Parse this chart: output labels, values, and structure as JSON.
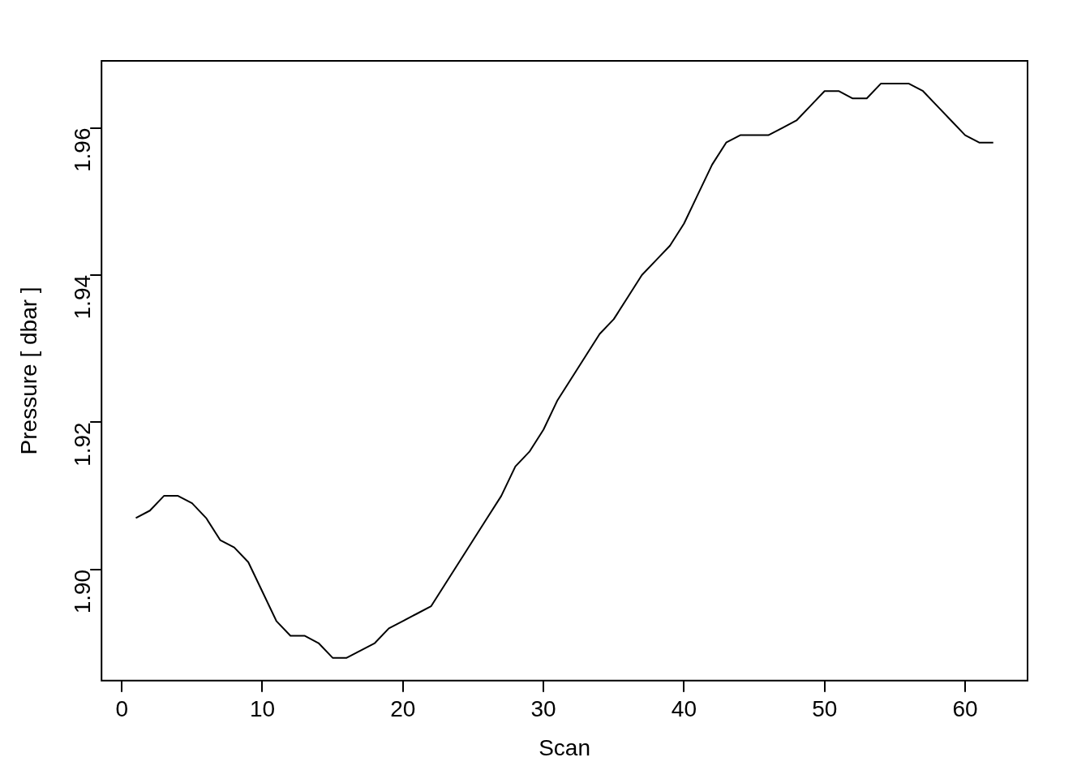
{
  "chart_data": {
    "type": "line",
    "xlabel": "Scan",
    "ylabel": "Pressure [ dbar ]",
    "x": [
      1,
      2,
      3,
      4,
      5,
      6,
      7,
      8,
      9,
      10,
      11,
      12,
      13,
      14,
      15,
      16,
      17,
      18,
      19,
      20,
      21,
      22,
      23,
      24,
      25,
      26,
      27,
      28,
      29,
      30,
      31,
      32,
      33,
      34,
      35,
      36,
      37,
      38,
      39,
      40,
      41,
      42,
      43,
      44,
      45,
      46,
      47,
      48,
      49,
      50,
      51,
      52,
      53,
      54,
      55,
      56,
      57,
      58,
      59,
      60,
      61,
      62
    ],
    "series": [
      {
        "color": "#000000",
        "values": [
          1.907,
          1.908,
          1.91,
          1.91,
          1.909,
          1.907,
          1.904,
          1.903,
          1.901,
          1.897,
          1.893,
          1.891,
          1.891,
          1.89,
          1.888,
          1.888,
          1.889,
          1.89,
          1.892,
          1.893,
          1.894,
          1.895,
          1.898,
          1.901,
          1.904,
          1.907,
          1.91,
          1.914,
          1.916,
          1.919,
          1.923,
          1.926,
          1.929,
          1.932,
          1.934,
          1.937,
          1.94,
          1.942,
          1.944,
          1.947,
          1.951,
          1.955,
          1.958,
          1.959,
          1.959,
          1.959,
          1.96,
          1.961,
          1.963,
          1.965,
          1.965,
          1.964,
          1.964,
          1.966,
          1.966,
          1.966,
          1.965,
          1.963,
          1.961,
          1.959,
          1.958,
          1.958
        ]
      }
    ],
    "xlim": [
      -1.44,
      64.44
    ],
    "xticks": [
      0,
      10,
      20,
      30,
      40,
      50,
      60
    ],
    "ylim": [
      1.8849,
      1.9691
    ],
    "yticks": [
      {
        "value": 1.9,
        "label": "1.90"
      },
      1.92,
      1.94,
      1.96
    ],
    "grid": false,
    "legend": false,
    "marker": "none",
    "line_style": "solid"
  }
}
